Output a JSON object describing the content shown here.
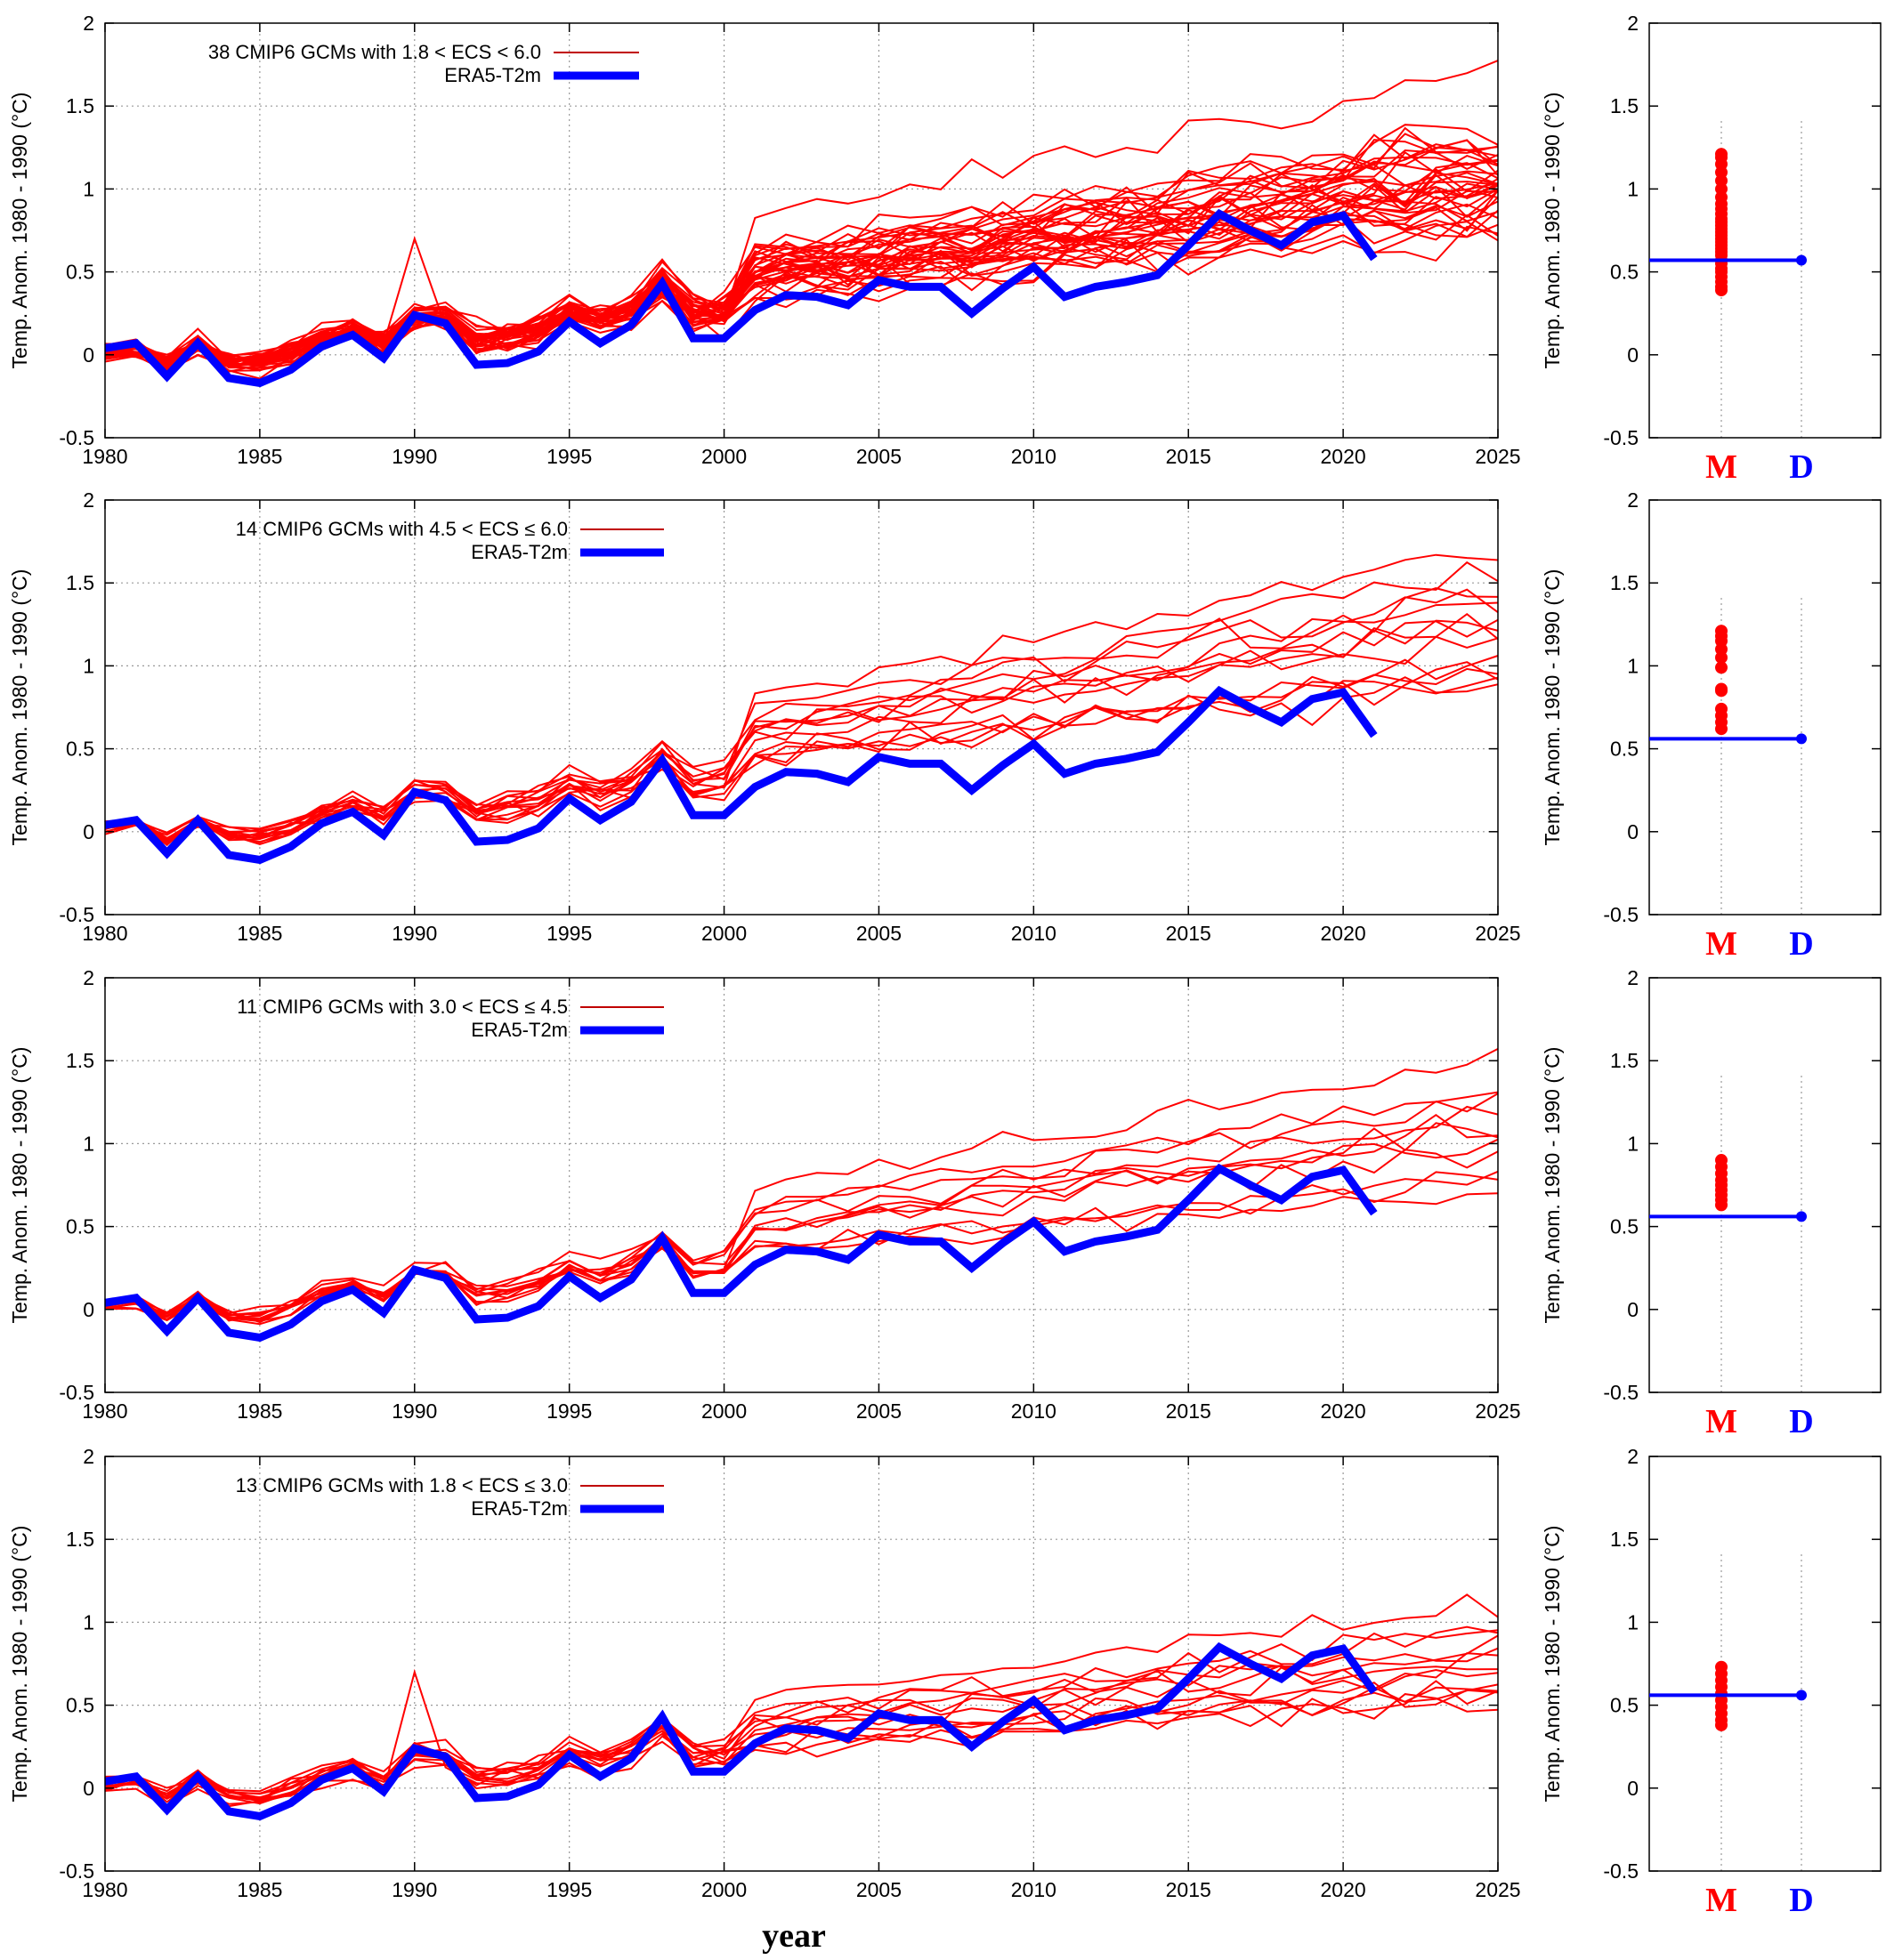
{
  "figure": {
    "xlabel": "year"
  },
  "colors": {
    "models": "#ff0000",
    "obs": "#0000ff",
    "legend_model_line": "#c00000",
    "grid": "#999999"
  },
  "chart_data": [
    {
      "type": "line",
      "panel_index": 0,
      "legend": [
        "38 CMIP6 GCMs with 1.8 < ECS < 6.0",
        "ERA5-T2m"
      ],
      "ylabel": "Temp. Anom. 1980 - 1990 (°C)",
      "xlim": [
        1980,
        2025
      ],
      "ylim": [
        -0.5,
        2
      ],
      "x_ticks": [
        "1980",
        "1985",
        "1990",
        "1995",
        "2000",
        "2005",
        "2010",
        "2015",
        "2020",
        "2025"
      ],
      "y_ticks": [
        "-0.5",
        "0",
        "0.5",
        "1",
        "1.5",
        "2"
      ],
      "grid": true,
      "legend_position": "top-left",
      "model_count": 38,
      "model_trend": [
        0.0,
        1.05
      ],
      "model_spread": [
        0.06,
        0.22
      ],
      "model_spike_1990": 0.7,
      "extreme_model_end": 1.7,
      "obs_series": {
        "name": "ERA5-T2m",
        "x_start": 1980,
        "values": [
          0.04,
          0.07,
          -0.13,
          0.07,
          -0.14,
          -0.17,
          -0.09,
          0.05,
          0.12,
          -0.02,
          0.24,
          0.19,
          -0.06,
          -0.05,
          0.02,
          0.2,
          0.07,
          0.18,
          0.43,
          0.1,
          0.1,
          0.27,
          0.36,
          0.35,
          0.3,
          0.45,
          0.41,
          0.41,
          0.25,
          0.4,
          0.53,
          0.35,
          0.41,
          0.44,
          0.48,
          0.66,
          0.85,
          0.75,
          0.66,
          0.8,
          0.84,
          0.58
        ]
      }
    },
    {
      "type": "line",
      "panel_index": 1,
      "legend": [
        "14 CMIP6 GCMs with 4.5 < ECS ≤ 6.0",
        "ERA5-T2m"
      ],
      "ylabel": "Temp. Anom. 1980 - 1990 (°C)",
      "xlim": [
        1980,
        2025
      ],
      "ylim": [
        -0.5,
        2
      ],
      "x_ticks": [
        "1980",
        "1985",
        "1990",
        "1995",
        "2000",
        "2005",
        "2010",
        "2015",
        "2020",
        "2025"
      ],
      "y_ticks": [
        "-0.5",
        "0",
        "0.5",
        "1",
        "1.5",
        "2"
      ],
      "grid": true,
      "legend_position": "top-left",
      "model_count": 14,
      "model_trend": [
        0.0,
        1.25
      ],
      "model_spread": [
        0.05,
        0.22
      ],
      "model_spike_1990": null,
      "extreme_model_end": 1.7,
      "obs_series": {
        "name": "ERA5-T2m",
        "x_start": 1980,
        "values": [
          0.04,
          0.07,
          -0.13,
          0.07,
          -0.14,
          -0.17,
          -0.09,
          0.05,
          0.12,
          -0.02,
          0.24,
          0.19,
          -0.06,
          -0.05,
          0.02,
          0.2,
          0.07,
          0.18,
          0.43,
          0.1,
          0.1,
          0.27,
          0.36,
          0.35,
          0.3,
          0.45,
          0.41,
          0.41,
          0.25,
          0.4,
          0.53,
          0.35,
          0.41,
          0.44,
          0.48,
          0.66,
          0.85,
          0.75,
          0.66,
          0.8,
          0.84,
          0.58
        ]
      }
    },
    {
      "type": "line",
      "panel_index": 2,
      "legend": [
        "11 CMIP6 GCMs with 3.0 < ECS ≤ 4.5",
        "ERA5-T2m"
      ],
      "ylabel": "Temp. Anom. 1980 - 1990 (°C)",
      "xlim": [
        1980,
        2025
      ],
      "ylim": [
        -0.5,
        2
      ],
      "x_ticks": [
        "1980",
        "1985",
        "1990",
        "1995",
        "2000",
        "2005",
        "2010",
        "2015",
        "2020",
        "2025"
      ],
      "y_ticks": [
        "-0.5",
        "0",
        "0.5",
        "1",
        "1.5",
        "2"
      ],
      "grid": true,
      "legend_position": "top-left",
      "model_count": 11,
      "model_trend": [
        0.0,
        1.0
      ],
      "model_spread": [
        0.05,
        0.15
      ],
      "model_spike_1990": null,
      "extreme_model_end": 1.52,
      "obs_series": {
        "name": "ERA5-T2m",
        "x_start": 1980,
        "values": [
          0.04,
          0.07,
          -0.13,
          0.07,
          -0.14,
          -0.17,
          -0.09,
          0.05,
          0.12,
          -0.02,
          0.24,
          0.19,
          -0.06,
          -0.05,
          0.02,
          0.2,
          0.07,
          0.18,
          0.43,
          0.1,
          0.1,
          0.27,
          0.36,
          0.35,
          0.3,
          0.45,
          0.41,
          0.41,
          0.25,
          0.4,
          0.53,
          0.35,
          0.41,
          0.44,
          0.48,
          0.66,
          0.85,
          0.75,
          0.66,
          0.8,
          0.84,
          0.58
        ]
      }
    },
    {
      "type": "line",
      "panel_index": 3,
      "legend": [
        "13 CMIP6 GCMs with 1.8 < ECS ≤ 3.0",
        "ERA5-T2m"
      ],
      "ylabel": "Temp. Anom. 1980 - 1990 (°C)",
      "xlim": [
        1980,
        2025
      ],
      "ylim": [
        -0.5,
        2
      ],
      "x_ticks": [
        "1980",
        "1985",
        "1990",
        "1995",
        "2000",
        "2005",
        "2010",
        "2015",
        "2020",
        "2025"
      ],
      "y_ticks": [
        "-0.5",
        "0",
        "0.5",
        "1",
        "1.5",
        "2"
      ],
      "grid": true,
      "legend_position": "top-left",
      "model_count": 13,
      "model_trend": [
        0.0,
        0.78
      ],
      "model_spread": [
        0.06,
        0.16
      ],
      "model_spike_1990": 0.7,
      "extreme_model_end": 1.13,
      "obs_series": {
        "name": "ERA5-T2m",
        "x_start": 1980,
        "values": [
          0.04,
          0.07,
          -0.13,
          0.07,
          -0.14,
          -0.17,
          -0.09,
          0.05,
          0.12,
          -0.02,
          0.24,
          0.19,
          -0.06,
          -0.05,
          0.02,
          0.2,
          0.07,
          0.18,
          0.43,
          0.1,
          0.1,
          0.27,
          0.36,
          0.35,
          0.3,
          0.45,
          0.41,
          0.41,
          0.25,
          0.4,
          0.53,
          0.35,
          0.41,
          0.44,
          0.48,
          0.66,
          0.85,
          0.75,
          0.66,
          0.8,
          0.84,
          0.58
        ]
      }
    },
    {
      "type": "scatter",
      "panel_index": 0,
      "ylabel": "Temp. Anom. 1980 - 1990 (°C)",
      "ylim": [
        -0.5,
        2
      ],
      "y_ticks": [
        "-0.5",
        "0",
        "0.5",
        "1",
        "1.5",
        "2"
      ],
      "grid": true,
      "categories": [
        "M",
        "D"
      ],
      "obs_value": 0.57,
      "model_values": [
        0.39,
        0.41,
        0.44,
        0.47,
        0.5,
        0.52,
        0.55,
        0.57,
        0.6,
        0.62,
        0.64,
        0.66,
        0.68,
        0.7,
        0.72,
        0.74,
        0.76,
        0.78,
        0.8,
        0.82,
        0.85,
        0.88,
        0.91,
        0.95,
        1.0,
        1.05,
        1.1,
        1.15,
        1.19,
        1.21
      ]
    },
    {
      "type": "scatter",
      "panel_index": 1,
      "ylabel": "Temp. Anom. 1980 - 1990 (°C)",
      "ylim": [
        -0.5,
        2
      ],
      "y_ticks": [
        "-0.5",
        "0",
        "0.5",
        "1",
        "1.5",
        "2"
      ],
      "grid": true,
      "categories": [
        "M",
        "D"
      ],
      "obs_value": 0.56,
      "model_values": [
        0.62,
        0.66,
        0.7,
        0.74,
        0.85,
        0.86,
        0.99,
        1.05,
        1.1,
        1.15,
        1.18,
        1.21
      ]
    },
    {
      "type": "scatter",
      "panel_index": 2,
      "ylabel": "Temp. Anom. 1980 - 1990 (°C)",
      "ylim": [
        -0.5,
        2
      ],
      "y_ticks": [
        "-0.5",
        "0",
        "0.5",
        "1",
        "1.5",
        "2"
      ],
      "grid": true,
      "categories": [
        "M",
        "D"
      ],
      "obs_value": 0.56,
      "model_values": [
        0.63,
        0.66,
        0.69,
        0.72,
        0.75,
        0.78,
        0.82,
        0.86,
        0.9
      ]
    },
    {
      "type": "scatter",
      "panel_index": 3,
      "ylabel": "Temp. Anom. 1980 - 1990 (°C)",
      "ylim": [
        -0.5,
        2
      ],
      "y_ticks": [
        "-0.5",
        "0",
        "0.5",
        "1",
        "1.5",
        "2"
      ],
      "grid": true,
      "categories": [
        "M",
        "D"
      ],
      "obs_value": 0.56,
      "model_values": [
        0.38,
        0.41,
        0.45,
        0.49,
        0.53,
        0.57,
        0.61,
        0.65,
        0.69,
        0.73
      ]
    }
  ]
}
